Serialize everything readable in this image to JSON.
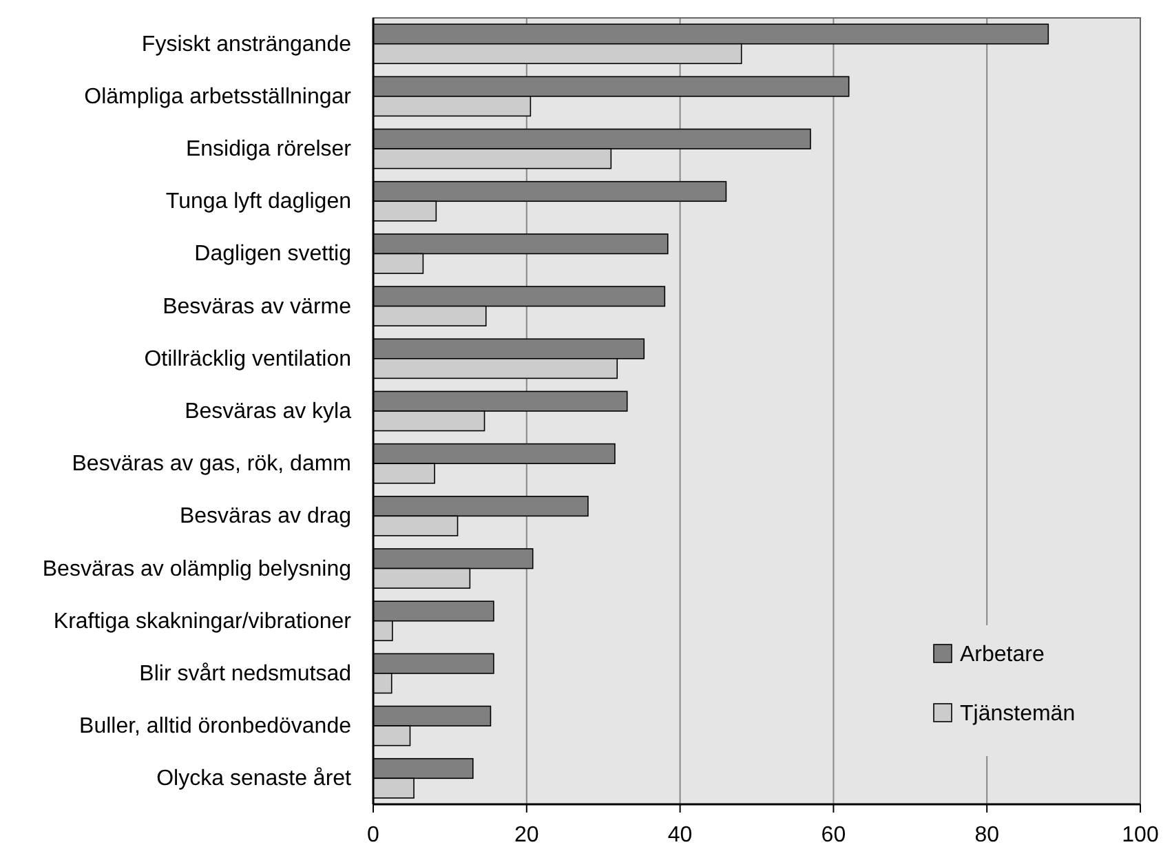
{
  "chart_data": {
    "type": "bar",
    "orientation": "horizontal",
    "categories": [
      "Fysiskt ansträngande",
      "Olämpliga arbetsställningar",
      "Ensidiga rörelser",
      "Tunga lyft dagligen",
      "Dagligen svettig",
      "Besväras av värme",
      "Otillräcklig ventilation",
      "Besväras av kyla",
      "Besväras av gas, rök, damm",
      "Besväras av drag",
      "Besväras av olämplig belysning",
      "Kraftiga skakningar/vibrationer",
      "Blir svårt nedsmutsad",
      "Buller, alltid öronbedövande",
      "Olycka senaste året"
    ],
    "series": [
      {
        "name": "Arbetare",
        "color": "#808080",
        "values": [
          88,
          62,
          57,
          46,
          38.4,
          38,
          35.3,
          33.1,
          31.5,
          28,
          20.8,
          15.7,
          15.7,
          15.3,
          13
        ]
      },
      {
        "name": "Tjänstemän",
        "color": "#cccccc",
        "values": [
          48,
          20.5,
          31,
          8.2,
          6.5,
          14.7,
          31.8,
          14.5,
          8,
          11,
          12.6,
          2.5,
          2.4,
          4.8,
          5.3
        ]
      }
    ],
    "xlim": [
      0,
      100
    ],
    "xticks": [
      0,
      20,
      40,
      60,
      80,
      100
    ],
    "grid": "x",
    "legend": "bottom right"
  }
}
